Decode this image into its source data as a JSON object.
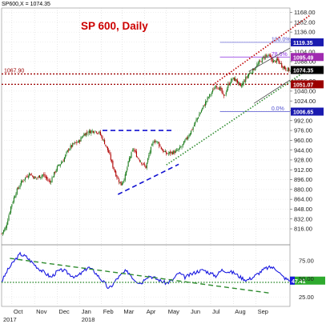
{
  "chart_data": {
    "type": "candlestick",
    "symbol_header": "SP600,X = 1074.35",
    "title": "SP 600, Daily",
    "title_color": "#cc0000",
    "price_axis": {
      "min": 790,
      "max": 1170,
      "ticks": [
        816.0,
        832.0,
        848.0,
        864.0,
        880.0,
        896.0,
        912.0,
        928.0,
        944.0,
        960.0,
        976.0,
        992.0,
        1008.0,
        1024.0,
        1040.0,
        1056.0,
        1072.0,
        1088.0,
        1104.0,
        1120.0,
        1136.0,
        1152.0,
        1168.0
      ],
      "tick_labels": [
        "816.00",
        "832.00",
        "848.00",
        "864.00",
        "880.00",
        "896.00",
        "912.00",
        "928.00",
        "944.00",
        "960.00",
        "976.00",
        "992.00",
        "1008.00",
        "1024.00",
        "1040.00",
        "1056.00",
        "1072.00",
        "1088.00",
        "1104.00",
        "1120.00",
        "1136.00",
        "1152.00",
        "1168.00"
      ]
    },
    "indicator_axis": {
      "min": 12,
      "max": 90,
      "ticks": [
        25.0,
        50.0,
        75.0
      ],
      "tick_labels": [
        "25.00",
        "50.00",
        "75.00"
      ],
      "current_label": "47.41",
      "current_value": 47.41
    },
    "x_axis": {
      "months": [
        "Oct",
        "Nov",
        "Dec",
        "Jan",
        "Feb",
        "Mar",
        "Apr",
        "May",
        "Jun",
        "Jul",
        "Aug",
        "Sep"
      ],
      "month_day_index": [
        10,
        32,
        54,
        76,
        97,
        117,
        139,
        160,
        182,
        203,
        225,
        247
      ],
      "years": [
        {
          "label": "2017",
          "day_index": 0
        },
        {
          "label": "2018",
          "day_index": 76
        }
      ],
      "total_days": 280
    },
    "price_labels": [
      {
        "text": "1119.35",
        "value": 1119.35,
        "color": "#1a1ab0"
      },
      {
        "text": "1095.49",
        "value": 1095.49,
        "color": "#a02bb0"
      },
      {
        "text": "1074.35",
        "value": 1074.35,
        "color": "#000000"
      },
      {
        "text": "1051.07",
        "value": 1051.07,
        "color": "#9b0000"
      },
      {
        "text": "1006.65",
        "value": 1006.65,
        "color": "#1a1ab0"
      }
    ],
    "fib_levels": [
      {
        "label": "100.0%",
        "value": 1119.35,
        "color": "#5050d0"
      },
      {
        "label": "78.6%",
        "value": 1095.49,
        "color": "#8a2be2"
      },
      {
        "label": "0.0%",
        "value": 1006.65,
        "color": "#5050d0"
      }
    ],
    "horizontal_levels": [
      {
        "label": "1067.90",
        "value": 1067.9,
        "color": "#9b0000"
      },
      {
        "value": 1051.07,
        "color": "#9b0000"
      }
    ],
    "trendlines": [
      {
        "name": "triangle-top",
        "color": "#1010d0",
        "dash": "dashed",
        "x1": 98,
        "y1": 976,
        "x2": 167,
        "y2": 976
      },
      {
        "name": "triangle-bottom",
        "color": "#1010d0",
        "dash": "dashed",
        "x1": 113,
        "y1": 872,
        "x2": 172,
        "y2": 921
      },
      {
        "name": "channel-upper",
        "color": "#c00000",
        "dash": "dotted",
        "x1": 205,
        "y1": 1050,
        "x2": 300,
        "y2": 1164
      },
      {
        "name": "channel-lower",
        "color": "#2e8b2e",
        "dash": "dotted",
        "x1": 160,
        "y1": 920,
        "x2": 300,
        "y2": 1078
      },
      {
        "name": "channel-mid",
        "color": "#333333",
        "dash": "solid",
        "x1": 240,
        "y1": 1072,
        "x2": 280,
        "y2": 1110
      },
      {
        "name": "wedge-lower",
        "color": "#333333",
        "dash": "solid",
        "x1": 245,
        "y1": 1020,
        "x2": 280,
        "y2": 1058
      }
    ],
    "indicator_lines": [
      {
        "name": "rsi-downtrend",
        "color": "#2e8b2e",
        "dash": "dashed",
        "x1": 8,
        "y1": 78,
        "x2": 262,
        "y2": 30
      },
      {
        "name": "rsi-support",
        "color": "#2e8b2e",
        "dash": "dotted",
        "x1": 0,
        "y1": 45,
        "x2": 355,
        "y2": 45
      }
    ],
    "price_anchors": [
      [
        0,
        808
      ],
      [
        4,
        818
      ],
      [
        9,
        852
      ],
      [
        14,
        876
      ],
      [
        20,
        894
      ],
      [
        27,
        906
      ],
      [
        33,
        898
      ],
      [
        40,
        904
      ],
      [
        47,
        892
      ],
      [
        54,
        916
      ],
      [
        60,
        928
      ],
      [
        65,
        946
      ],
      [
        70,
        954
      ],
      [
        75,
        958
      ],
      [
        80,
        970
      ],
      [
        85,
        974
      ],
      [
        90,
        976
      ],
      [
        95,
        972
      ],
      [
        100,
        956
      ],
      [
        104,
        940
      ],
      [
        108,
        918
      ],
      [
        112,
        900
      ],
      [
        116,
        888
      ],
      [
        120,
        902
      ],
      [
        124,
        930
      ],
      [
        128,
        946
      ],
      [
        132,
        932
      ],
      [
        136,
        924
      ],
      [
        140,
        916
      ],
      [
        144,
        942
      ],
      [
        148,
        960
      ],
      [
        152,
        956
      ],
      [
        156,
        944
      ],
      [
        160,
        938
      ],
      [
        165,
        940
      ],
      [
        170,
        942
      ],
      [
        175,
        950
      ],
      [
        180,
        964
      ],
      [
        185,
        978
      ],
      [
        190,
        996
      ],
      [
        195,
        1012
      ],
      [
        200,
        1028
      ],
      [
        205,
        1040
      ],
      [
        208,
        1050
      ],
      [
        212,
        1044
      ],
      [
        216,
        1030
      ],
      [
        220,
        1050
      ],
      [
        224,
        1060
      ],
      [
        228,
        1058
      ],
      [
        232,
        1046
      ],
      [
        236,
        1058
      ],
      [
        240,
        1068
      ],
      [
        244,
        1074
      ],
      [
        248,
        1082
      ],
      [
        252,
        1090
      ],
      [
        256,
        1098
      ],
      [
        260,
        1096
      ],
      [
        264,
        1088
      ],
      [
        268,
        1090
      ],
      [
        272,
        1082
      ],
      [
        276,
        1076
      ],
      [
        280,
        1074
      ]
    ],
    "rsi_anchors": [
      [
        0,
        46
      ],
      [
        6,
        62
      ],
      [
        12,
        74
      ],
      [
        18,
        84
      ],
      [
        24,
        80
      ],
      [
        30,
        72
      ],
      [
        36,
        64
      ],
      [
        42,
        58
      ],
      [
        48,
        52
      ],
      [
        54,
        60
      ],
      [
        60,
        62
      ],
      [
        66,
        56
      ],
      [
        72,
        52
      ],
      [
        78,
        58
      ],
      [
        84,
        66
      ],
      [
        90,
        60
      ],
      [
        96,
        50
      ],
      [
        100,
        44
      ],
      [
        104,
        36
      ],
      [
        108,
        42
      ],
      [
        112,
        50
      ],
      [
        116,
        55
      ],
      [
        120,
        60
      ],
      [
        124,
        58
      ],
      [
        128,
        50
      ],
      [
        132,
        46
      ],
      [
        136,
        44
      ],
      [
        140,
        52
      ],
      [
        144,
        54
      ],
      [
        150,
        50
      ],
      [
        156,
        46
      ],
      [
        160,
        44
      ],
      [
        166,
        48
      ],
      [
        172,
        58
      ],
      [
        178,
        52
      ],
      [
        184,
        56
      ],
      [
        190,
        60
      ],
      [
        196,
        62
      ],
      [
        202,
        58
      ],
      [
        208,
        54
      ],
      [
        214,
        62
      ],
      [
        220,
        60
      ],
      [
        226,
        58
      ],
      [
        232,
        52
      ],
      [
        238,
        48
      ],
      [
        244,
        52
      ],
      [
        250,
        58
      ],
      [
        256,
        64
      ],
      [
        262,
        66
      ],
      [
        268,
        62
      ],
      [
        272,
        54
      ],
      [
        276,
        50
      ],
      [
        280,
        47
      ]
    ]
  }
}
